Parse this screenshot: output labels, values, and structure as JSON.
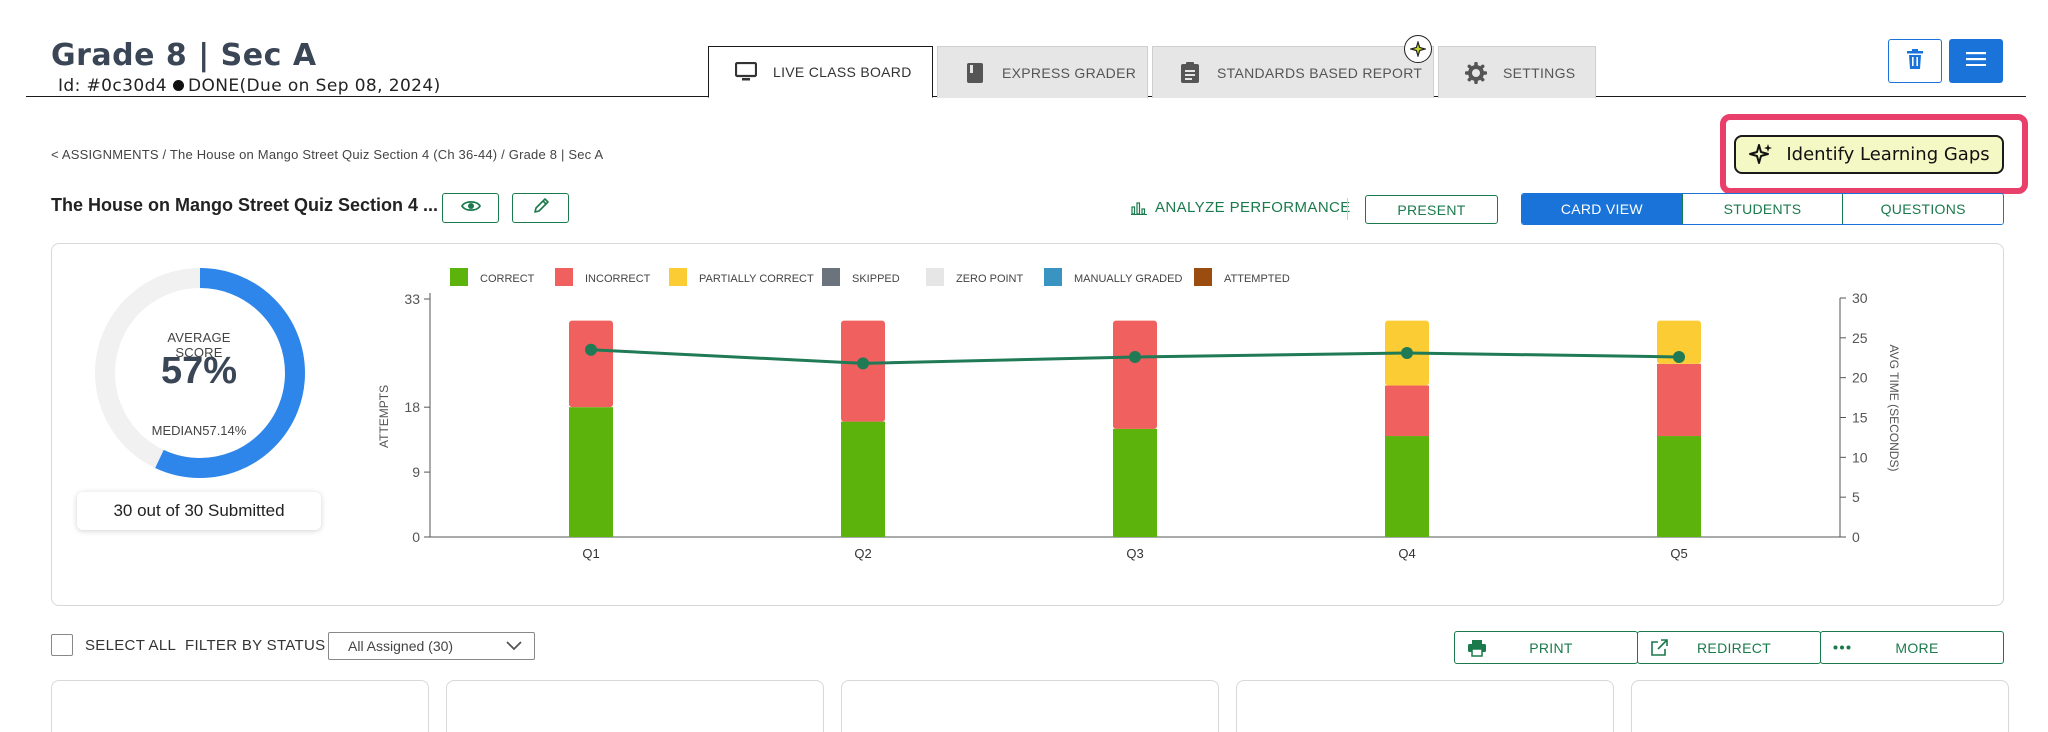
{
  "header": {
    "class_title": "Grade 8 | Sec A",
    "id_text": "Id: #0c30d4",
    "status_text": "DONE(Due on Sep 08, 2024)"
  },
  "tabs": [
    {
      "label": "LIVE CLASS BOARD",
      "icon": "monitor-icon",
      "active": true
    },
    {
      "label": "EXPRESS GRADER",
      "icon": "book-icon",
      "active": false
    },
    {
      "label": "STANDARDS BASED REPORT",
      "icon": "report-icon",
      "active": false
    },
    {
      "label": "SETTINGS",
      "icon": "gear-icon",
      "active": false
    }
  ],
  "breadcrumb": "< ASSIGNMENTS / The House on Mango Street Quiz Section 4 (Ch 36-44) / Grade 8 | Sec A",
  "gaps_button": {
    "label": "Identify Learning Gaps",
    "icon": "sparkle-icon"
  },
  "assignment": {
    "title": "The House on Mango Street Quiz Section 4 ..."
  },
  "toolbar": {
    "analyze_label": "ANALYZE PERFORMANCE",
    "present_label": "PRESENT",
    "views": [
      "CARD VIEW",
      "STUDENTS",
      "QUESTIONS"
    ],
    "active_view": "CARD VIEW"
  },
  "summary": {
    "average_label": "AVERAGE SCORE",
    "average_value": "57%",
    "average_fraction": 0.57,
    "median_text": "MEDIAN57.14%",
    "submitted_text": "30 out of 30 Submitted"
  },
  "chart_data": {
    "type": "bar",
    "stacked": true,
    "categories": [
      "Q1",
      "Q2",
      "Q3",
      "Q4",
      "Q5"
    ],
    "ylabel": "ATTEMPTS",
    "y2label": "AVG TIME (SECONDS)",
    "ylim": [
      0,
      33
    ],
    "yticks": [
      0,
      9,
      18,
      33
    ],
    "y2lim": [
      0,
      30
    ],
    "y2ticks": [
      0,
      5,
      10,
      15,
      20,
      25,
      30
    ],
    "legend": [
      {
        "name": "CORRECT",
        "color": "#5bb30c"
      },
      {
        "name": "INCORRECT",
        "color": "#f0605e"
      },
      {
        "name": "PARTIALLY CORRECT",
        "color": "#fbcc34"
      },
      {
        "name": "SKIPPED",
        "color": "#6b737d"
      },
      {
        "name": "ZERO POINT",
        "color": "#e6e6e6"
      },
      {
        "name": "MANUALLY GRADED",
        "color": "#3a94c2"
      },
      {
        "name": "ATTEMPTED",
        "color": "#9a4d0e"
      }
    ],
    "series": [
      {
        "name": "CORRECT",
        "values": [
          18,
          16,
          15,
          14,
          14
        ]
      },
      {
        "name": "INCORRECT",
        "values": [
          12,
          14,
          15,
          7,
          10
        ]
      },
      {
        "name": "PARTIALLY CORRECT",
        "values": [
          0,
          0,
          0,
          9,
          6
        ]
      }
    ],
    "line": {
      "name": "AVG TIME (SECONDS)",
      "values": [
        23.5,
        21.8,
        22.6,
        23.1,
        22.6
      ],
      "color": "#1f7a55"
    }
  },
  "bottom_bar": {
    "select_all_label": "SELECT ALL",
    "filter_label": "FILTER BY STATUS",
    "filter_value": "All Assigned (30)",
    "print_label": "PRINT",
    "redirect_label": "REDIRECT",
    "more_label": "MORE"
  },
  "colors": {
    "primary_blue": "#1a73d9",
    "green": "#1a7a4c",
    "highlight_pink": "#e8406a",
    "gaps_bg": "#f4f8c4"
  }
}
